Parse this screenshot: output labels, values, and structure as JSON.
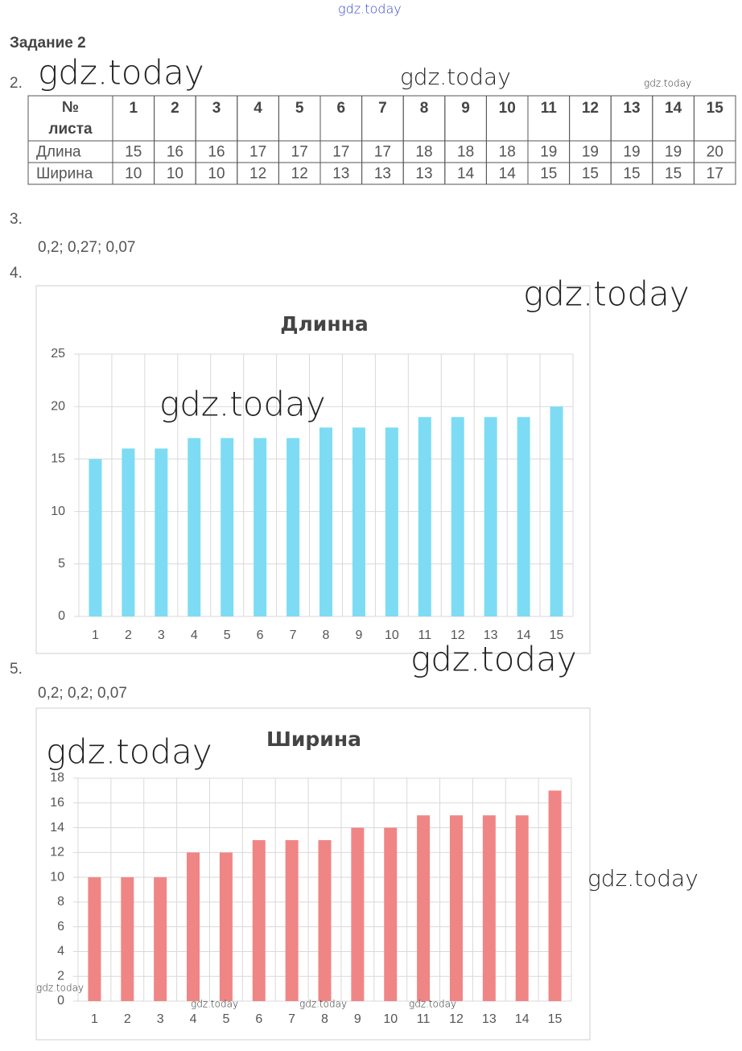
{
  "document": {
    "watermarks": [
      "gdz.today",
      "gdz.today",
      "gdz.today",
      "gdz.today",
      "gdz.today",
      "gdz.today",
      "gdz.today",
      "gdz.today",
      "gdz.today",
      "gdz.today",
      "gdz.today",
      "gdz.today",
      "gdz.today"
    ],
    "heading": "Задание 2",
    "item_numbers": [
      "2.",
      "3.",
      "4.",
      "5."
    ],
    "table": {
      "header": [
        "№ листа",
        1,
        2,
        3,
        4,
        5,
        6,
        7,
        8,
        9,
        10,
        11,
        12,
        13,
        14,
        15
      ],
      "rows": [
        [
          "Длина",
          15,
          16,
          16,
          17,
          17,
          17,
          17,
          18,
          18,
          18,
          19,
          19,
          19,
          19,
          20
        ],
        [
          "Ширина",
          10,
          10,
          10,
          12,
          12,
          13,
          13,
          13,
          14,
          14,
          15,
          15,
          15,
          15,
          17
        ]
      ]
    },
    "answer_3": "0,2; 0,27; 0,07",
    "answer_5": "0,2; 0,2; 0,07"
  },
  "chart_data": [
    {
      "type": "bar",
      "title": "Длинна",
      "categories": [
        "1",
        "2",
        "3",
        "4",
        "5",
        "6",
        "7",
        "8",
        "9",
        "10",
        "11",
        "12",
        "13",
        "14",
        "15"
      ],
      "values": [
        15,
        16,
        16,
        17,
        17,
        17,
        17,
        18,
        18,
        18,
        19,
        19,
        19,
        19,
        20
      ],
      "color": "#7ddcf4",
      "ylim": [
        0,
        25
      ],
      "yticks": [
        0,
        5,
        10,
        15,
        20,
        25
      ],
      "grid": true
    },
    {
      "type": "bar",
      "title": "Ширина",
      "categories": [
        "1",
        "2",
        "3",
        "4",
        "5",
        "6",
        "7",
        "8",
        "9",
        "10",
        "11",
        "12",
        "13",
        "14",
        "15"
      ],
      "values": [
        10,
        10,
        10,
        12,
        12,
        13,
        13,
        13,
        14,
        14,
        15,
        15,
        15,
        15,
        17
      ],
      "color": "#f08585",
      "ylim": [
        0,
        18
      ],
      "yticks": [
        0,
        2,
        4,
        6,
        8,
        10,
        12,
        14,
        16,
        18
      ],
      "grid": true
    }
  ]
}
